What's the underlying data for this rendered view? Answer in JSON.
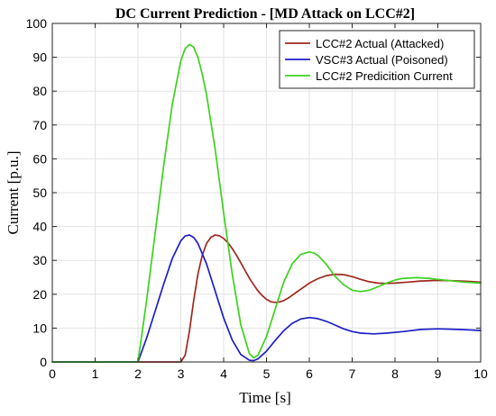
{
  "chart_data": {
    "type": "line",
    "title": "DC Current Prediction - [MD Attack on LCC#2]",
    "xlabel": "Time [s]",
    "ylabel": "Current [p.u.]",
    "xlim": [
      0,
      10
    ],
    "ylim": [
      0,
      100
    ],
    "xticks": [
      "0",
      "1",
      "2",
      "3",
      "4",
      "5",
      "6",
      "7",
      "8",
      "9",
      "10"
    ],
    "yticks": [
      "0",
      "10",
      "20",
      "30",
      "40",
      "50",
      "60",
      "70",
      "80",
      "90",
      "100"
    ],
    "grid": true,
    "legend_position": "top-right",
    "series": [
      {
        "name": "LCC#2 Actual (Attacked)",
        "color": "#a0281e",
        "x": [
          0,
          3.0,
          3.1,
          3.2,
          3.3,
          3.4,
          3.5,
          3.6,
          3.7,
          3.8,
          3.9,
          4.0,
          4.1,
          4.2,
          4.3,
          4.4,
          4.5,
          4.6,
          4.7,
          4.8,
          4.9,
          5.0,
          5.1,
          5.2,
          5.3,
          5.4,
          5.5,
          5.6,
          5.7,
          5.8,
          5.9,
          6.0,
          6.2,
          6.4,
          6.6,
          6.8,
          7.0,
          7.2,
          7.4,
          7.6,
          7.8,
          8.0,
          8.3,
          8.6,
          9.0,
          9.4,
          9.7,
          10.0
        ],
        "y": [
          0,
          0,
          2,
          9,
          18,
          26,
          31.5,
          35,
          36.8,
          37.5,
          37.3,
          36.5,
          35.2,
          33.5,
          31.5,
          29.3,
          27,
          24.8,
          22.8,
          21,
          19.6,
          18.5,
          17.8,
          17.6,
          17.7,
          18.1,
          18.8,
          19.7,
          20.6,
          21.5,
          22.4,
          23.3,
          24.6,
          25.5,
          25.9,
          25.8,
          25.2,
          24.4,
          23.7,
          23.3,
          23.2,
          23.3,
          23.6,
          23.9,
          24.1,
          24.0,
          23.8,
          23.6
        ]
      },
      {
        "name": "VSC#3 Actual (Poisoned)",
        "color": "#1e1ec8",
        "x": [
          0,
          2.0,
          2.2,
          2.4,
          2.6,
          2.8,
          3.0,
          3.1,
          3.2,
          3.3,
          3.4,
          3.6,
          3.8,
          4.0,
          4.2,
          4.4,
          4.6,
          4.7,
          4.8,
          5.0,
          5.2,
          5.4,
          5.6,
          5.8,
          6.0,
          6.2,
          6.4,
          6.6,
          6.8,
          7.0,
          7.2,
          7.5,
          7.8,
          8.2,
          8.6,
          9.0,
          9.5,
          10.0
        ],
        "y": [
          0,
          0,
          7,
          15,
          23,
          30.5,
          35.8,
          37.2,
          37.5,
          36.8,
          35,
          29,
          21,
          13,
          6.5,
          2.2,
          0.5,
          0.4,
          0.9,
          3.2,
          6.3,
          9.2,
          11.4,
          12.7,
          13.1,
          12.8,
          12,
          10.9,
          9.8,
          9,
          8.5,
          8.3,
          8.5,
          9,
          9.6,
          9.8,
          9.6,
          9.3
        ]
      },
      {
        "name": "LCC#2 Predicition Current",
        "color": "#3cd21e",
        "x": [
          0,
          2.0,
          2.2,
          2.4,
          2.6,
          2.8,
          3.0,
          3.1,
          3.2,
          3.3,
          3.4,
          3.5,
          3.6,
          3.8,
          4.0,
          4.2,
          4.4,
          4.6,
          4.7,
          4.8,
          5.0,
          5.2,
          5.4,
          5.6,
          5.8,
          6.0,
          6.1,
          6.2,
          6.4,
          6.6,
          6.8,
          7.0,
          7.2,
          7.4,
          7.6,
          7.8,
          8.0,
          8.2,
          8.5,
          8.8,
          9.0,
          9.3,
          9.6,
          10.0
        ],
        "y": [
          0,
          0,
          18,
          38,
          58,
          76,
          89,
          92.5,
          93.8,
          93,
          90,
          85,
          79,
          63,
          44,
          26,
          11,
          2.5,
          1.2,
          2,
          7.5,
          15.5,
          23.5,
          29,
          31.8,
          32.5,
          32.2,
          31.5,
          28.8,
          25.3,
          22.8,
          21.2,
          20.8,
          21.2,
          22.2,
          23.3,
          24.2,
          24.7,
          24.9,
          24.7,
          24.4,
          24.0,
          23.6,
          23.3
        ]
      }
    ]
  }
}
